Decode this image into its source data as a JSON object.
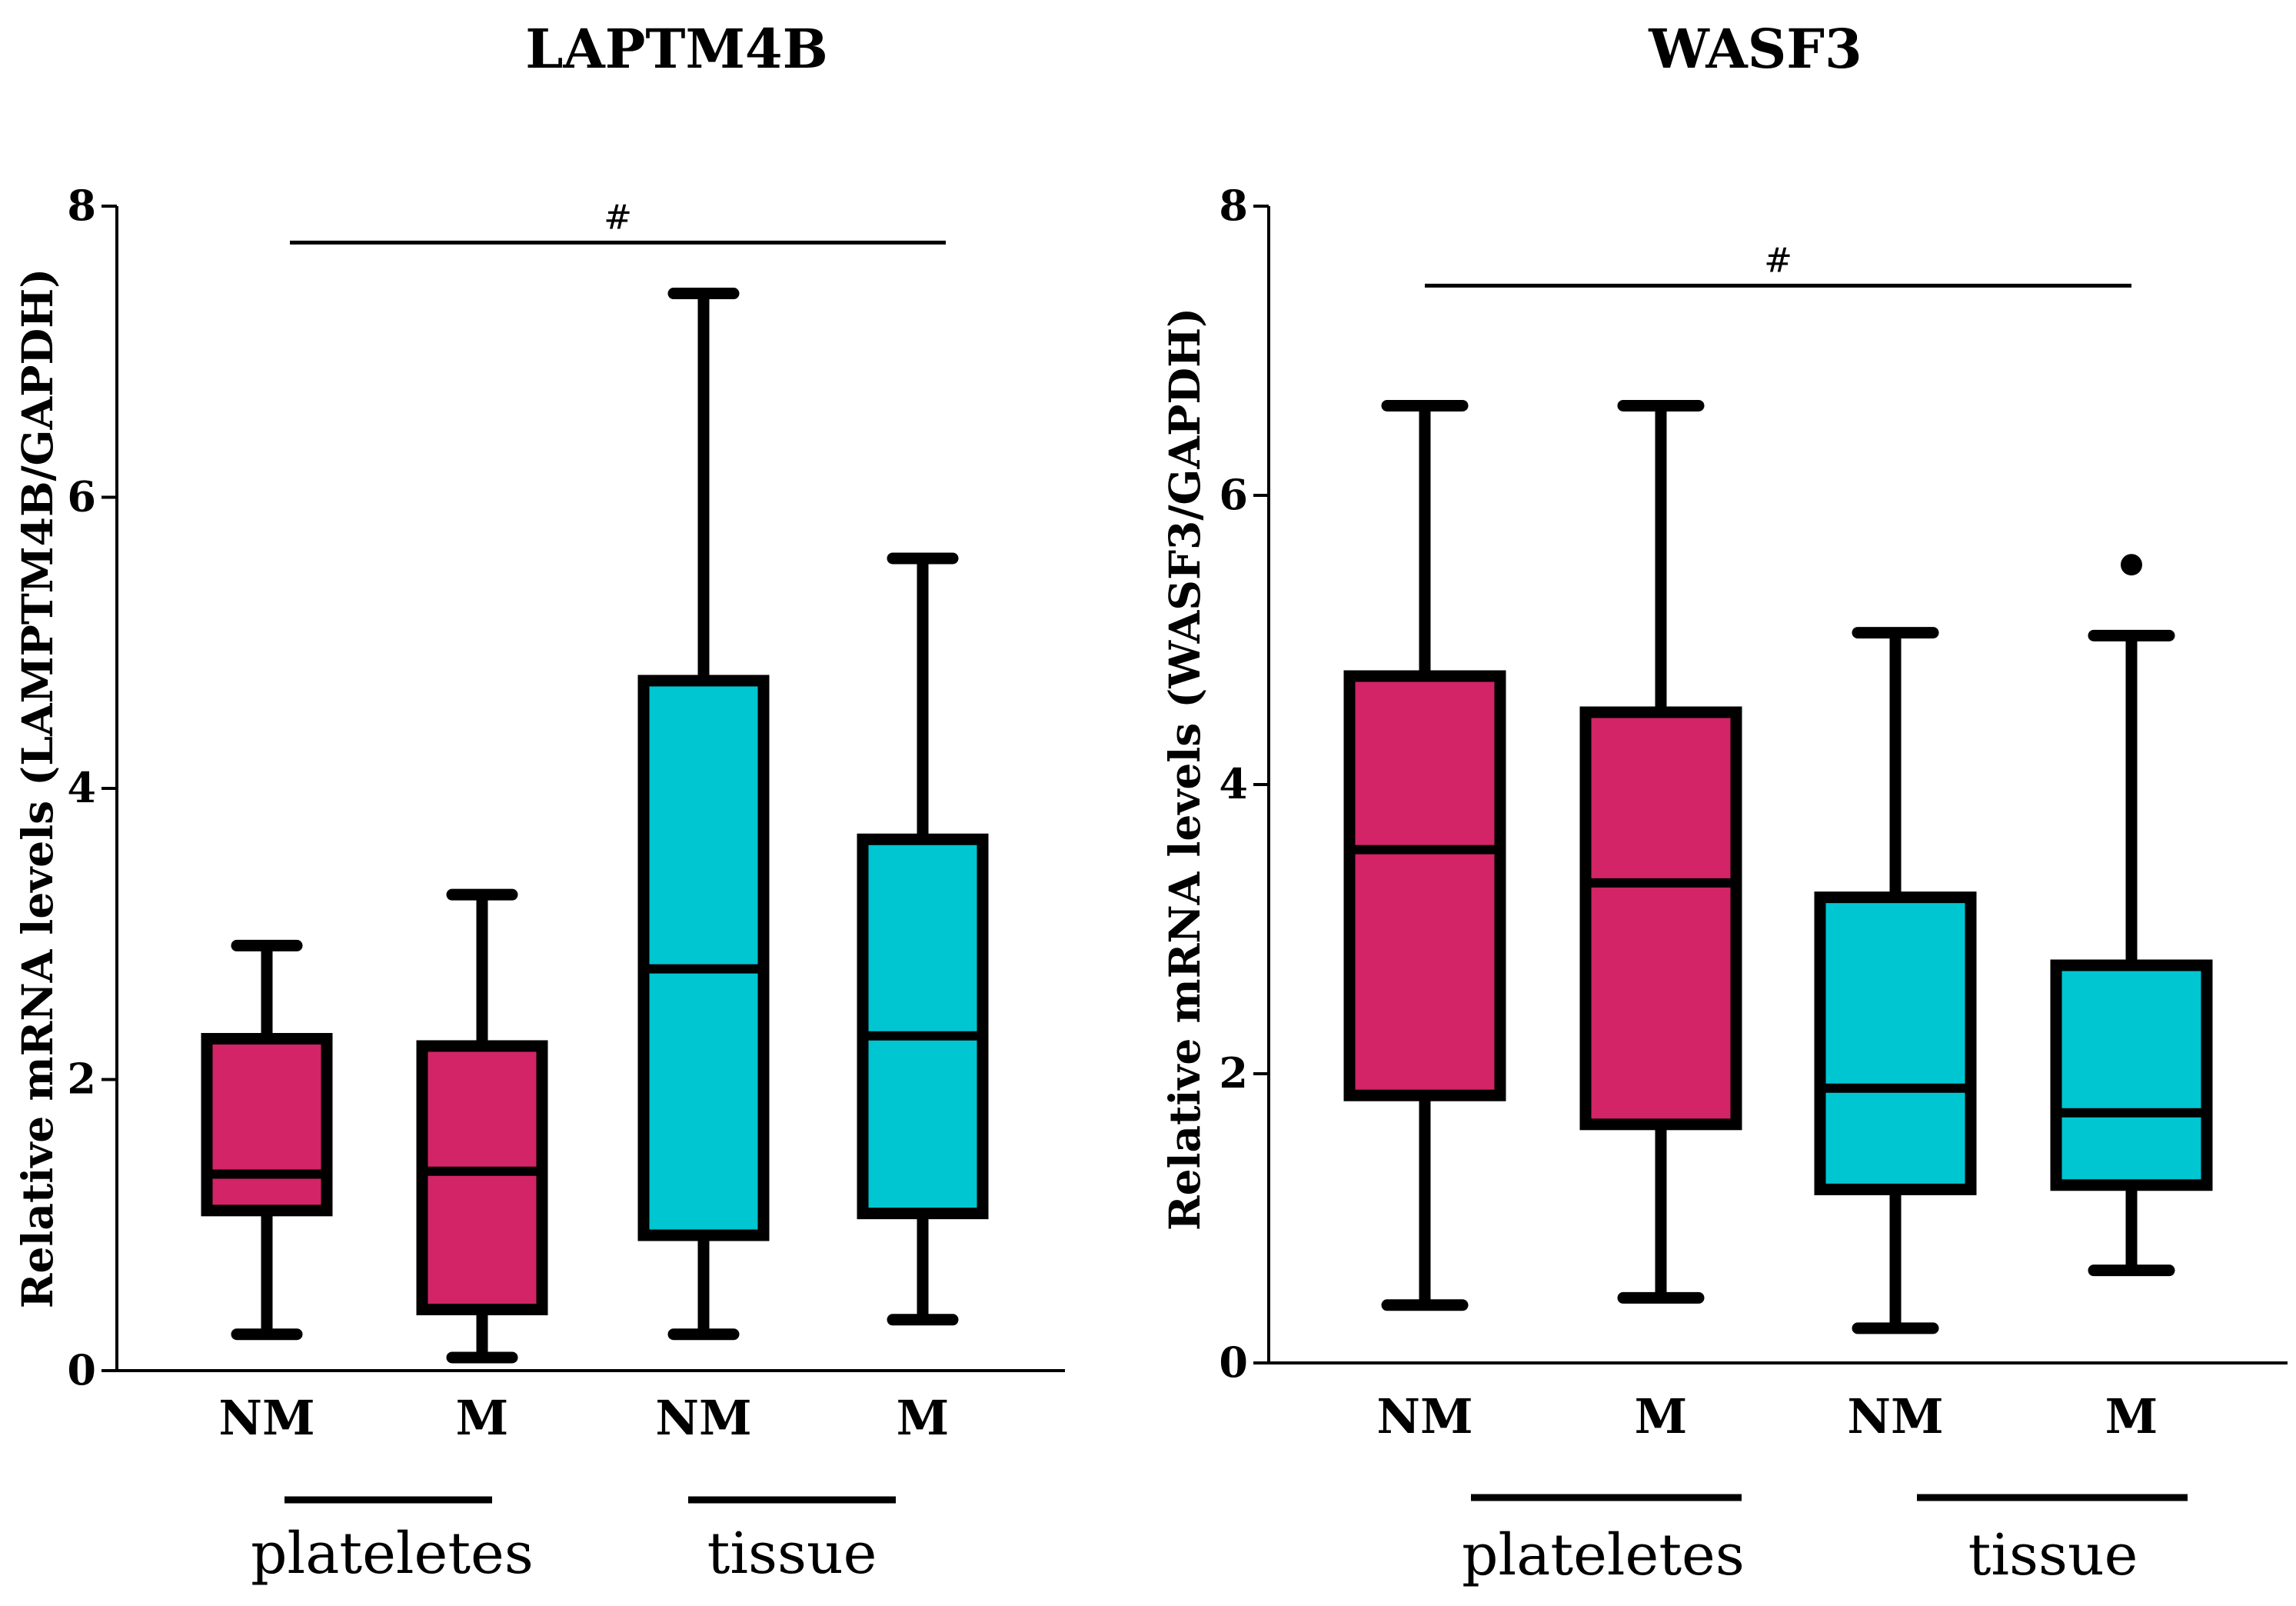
{
  "chart_data": [
    {
      "type": "boxplot",
      "title": "LAPTM4B",
      "ylabel": "Relative mRNA levels (LAMPTM4B/GAPDH)",
      "ylim": [
        0,
        8
      ],
      "yticks": [
        0,
        2,
        4,
        6,
        8
      ],
      "categories": [
        "NM",
        "M",
        "NM",
        "M"
      ],
      "groups": [
        {
          "label": "plateletes",
          "members": [
            0,
            1
          ]
        },
        {
          "label": "tissue",
          "members": [
            2,
            3
          ]
        }
      ],
      "series": [
        {
          "category": "NM",
          "group": "plateletes",
          "color": "#D22466",
          "min": 0.25,
          "q1": 1.1,
          "median": 1.35,
          "q3": 2.28,
          "max": 2.92,
          "outliers": []
        },
        {
          "category": "M",
          "group": "plateletes",
          "color": "#D22466",
          "min": 0.09,
          "q1": 0.42,
          "median": 1.37,
          "q3": 2.23,
          "max": 3.27,
          "outliers": []
        },
        {
          "category": "NM",
          "group": "tissue",
          "color": "#00C6D2",
          "min": 0.25,
          "q1": 0.93,
          "median": 2.76,
          "q3": 4.74,
          "max": 7.4,
          "outliers": []
        },
        {
          "category": "M",
          "group": "tissue",
          "color": "#00C6D2",
          "min": 0.35,
          "q1": 1.08,
          "median": 2.3,
          "q3": 3.65,
          "max": 5.58,
          "outliers": []
        }
      ],
      "significance": {
        "symbol": "#",
        "from": 0,
        "to": 3,
        "y": 7.75
      }
    },
    {
      "type": "boxplot",
      "title": "WASF3",
      "ylabel": "Relative mRNA levels (WASF3/GAPDH)",
      "ylim": [
        0,
        8
      ],
      "yticks": [
        0,
        2,
        4,
        6,
        8
      ],
      "categories": [
        "NM",
        "M",
        "NM",
        "M"
      ],
      "groups": [
        {
          "label": "plateletes",
          "members": [
            0,
            1
          ]
        },
        {
          "label": "tissue",
          "members": [
            2,
            3
          ]
        }
      ],
      "series": [
        {
          "category": "NM",
          "group": "plateletes",
          "color": "#D22466",
          "min": 0.4,
          "q1": 1.85,
          "median": 3.55,
          "q3": 4.75,
          "max": 6.62,
          "outliers": []
        },
        {
          "category": "M",
          "group": "plateletes",
          "color": "#D22466",
          "min": 0.45,
          "q1": 1.65,
          "median": 3.32,
          "q3": 4.5,
          "max": 6.62,
          "outliers": []
        },
        {
          "category": "NM",
          "group": "tissue",
          "color": "#00C6D2",
          "min": 0.24,
          "q1": 1.2,
          "median": 1.9,
          "q3": 3.22,
          "max": 5.05,
          "outliers": []
        },
        {
          "category": "M",
          "group": "tissue",
          "color": "#00C6D2",
          "min": 0.64,
          "q1": 1.23,
          "median": 1.73,
          "q3": 2.75,
          "max": 5.03,
          "outliers": [
            5.52
          ]
        }
      ],
      "significance": {
        "symbol": "#",
        "from": 0,
        "to": 3,
        "y": 7.45
      }
    }
  ]
}
